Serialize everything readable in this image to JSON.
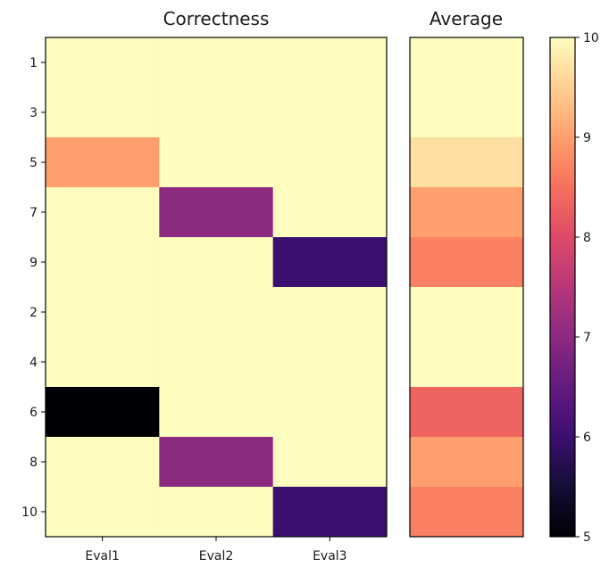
{
  "chart_data": [
    {
      "type": "heatmap",
      "title": "Correctness",
      "xlabel": "",
      "ylabel": "",
      "x_categories": [
        "Eval1",
        "Eval2",
        "Eval3"
      ],
      "y_categories": [
        "1",
        "3",
        "5",
        "7",
        "9",
        "2",
        "4",
        "6",
        "8",
        "10"
      ],
      "values": [
        [
          10,
          10,
          10
        ],
        [
          10,
          10,
          10
        ],
        [
          9,
          10,
          10
        ],
        [
          10,
          7,
          10
        ],
        [
          10,
          10,
          6
        ],
        [
          10,
          10,
          10
        ],
        [
          10,
          10,
          10
        ],
        [
          5,
          10,
          10
        ],
        [
          10,
          7,
          10
        ],
        [
          10,
          10,
          6
        ]
      ],
      "colormap": "magma",
      "vmin": 5,
      "vmax": 10
    },
    {
      "type": "heatmap",
      "title": "Average",
      "y_categories": [
        "1",
        "3",
        "5",
        "7",
        "9",
        "2",
        "4",
        "6",
        "8",
        "10"
      ],
      "values": [
        10,
        10,
        9.67,
        9,
        8.67,
        10,
        10,
        8.33,
        9,
        8.67
      ],
      "colormap": "magma",
      "vmin": 5,
      "vmax": 10
    }
  ],
  "colorbar": {
    "ticks": [
      "5",
      "6",
      "7",
      "8",
      "9",
      "10"
    ],
    "colors": {
      "5": "#000004",
      "5.5": "#140e36",
      "6": "#3b0f70",
      "6.5": "#641a80",
      "7": "#8c2981",
      "7.5": "#b73779",
      "8": "#de4968",
      "8.5": "#f7705c",
      "9": "#fe9f6d",
      "9.5": "#fecf92",
      "10": "#fcfdbf"
    }
  }
}
